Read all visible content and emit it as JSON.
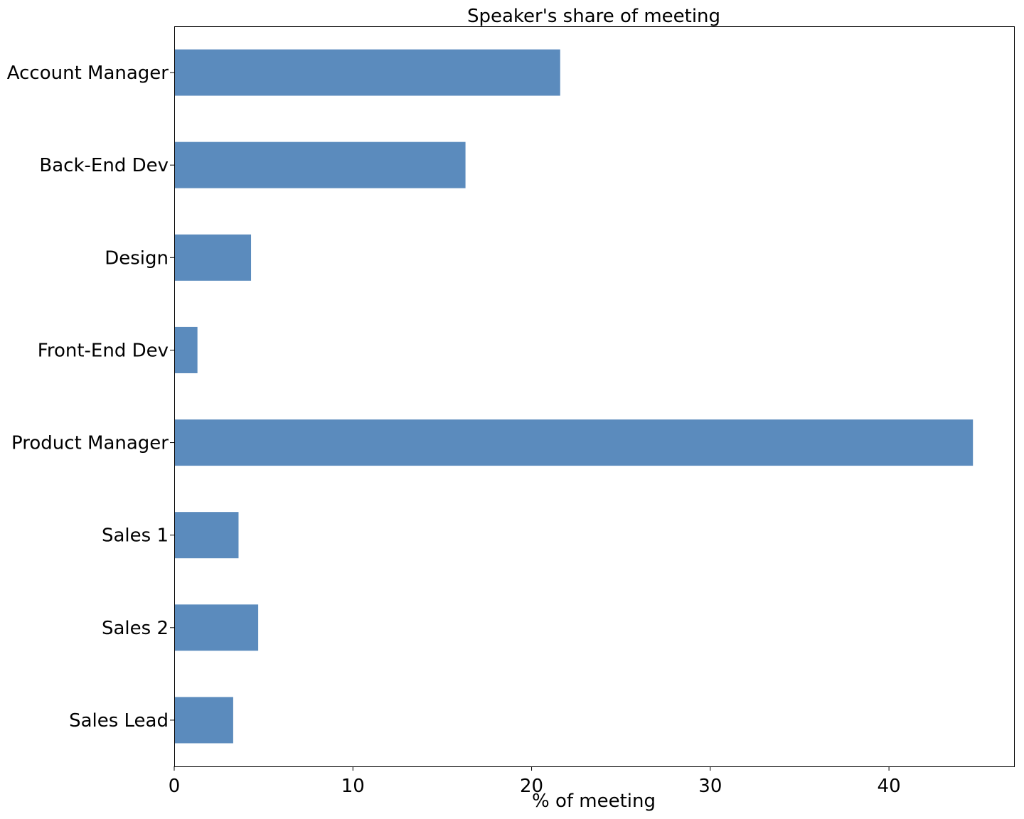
{
  "chart_data": {
    "type": "bar",
    "orientation": "horizontal",
    "title": "Speaker's share of meeting",
    "xlabel": "% of meeting",
    "ylabel": "",
    "categories": [
      "Account Manager",
      "Back-End Dev",
      "Design",
      "Front-End Dev",
      "Product Manager",
      "Sales 1",
      "Sales 2",
      "Sales Lead"
    ],
    "values": [
      21.6,
      16.3,
      4.3,
      1.3,
      44.7,
      3.6,
      4.7,
      3.3
    ],
    "xlim": [
      0,
      47
    ],
    "xticks": [
      0,
      10,
      20,
      30,
      40
    ],
    "grid": false,
    "legend": "none",
    "bar_color": "#5b8bbd"
  }
}
